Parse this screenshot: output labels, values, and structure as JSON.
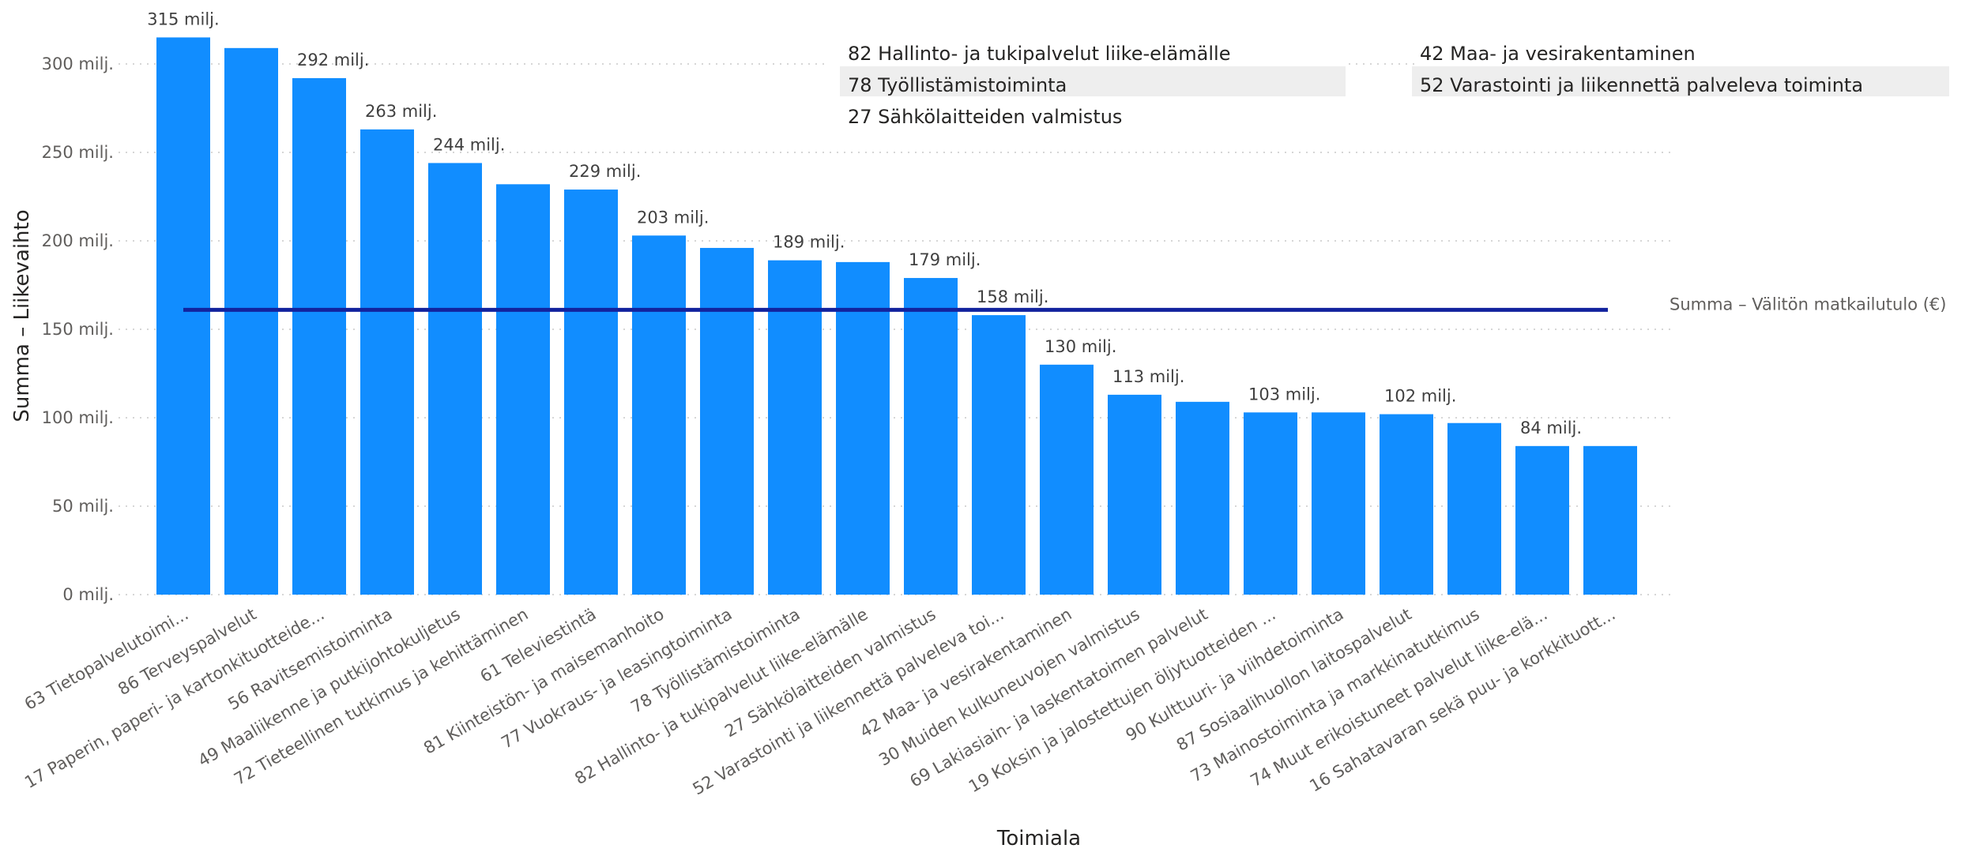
{
  "chart_data": {
    "type": "bar",
    "title": "",
    "xlabel": "Toimiala",
    "ylabel": "Summa – Liikevaihto",
    "ylim": [
      0,
      315
    ],
    "yticks": [
      0,
      50,
      100,
      150,
      200,
      250,
      300
    ],
    "ytick_labels": [
      "0 milj.",
      "50 milj.",
      "100 milj.",
      "150 milj.",
      "200 milj.",
      "250 milj.",
      "300 milj."
    ],
    "grid": true,
    "bar_color": "#118dff",
    "reference_color": "#12239e",
    "categories": [
      "63 Tietopalvelutoimi...",
      "86 Terveyspalvelut",
      "17 Paperin, paperi- ja kartonkituotteide...",
      "56 Ravitsemistoiminta",
      "49 Maaliikenne ja putkijohtokuljetus",
      "72 Tieteellinen tutkimus ja kehittäminen",
      "61 Televiestintä",
      "81 Kiinteistön- ja maisemanhoito",
      "77 Vuokraus- ja leasingtoiminta",
      "78 Työllistämistoiminta",
      "82 Hallinto- ja tukipalvelut liike-elämälle",
      "27 Sähkölaitteiden valmistus",
      "52 Varastointi ja liikennettä palveleva toi...",
      "42 Maa- ja vesirakentaminen",
      "30 Muiden kulkuneuvojen valmistus",
      "69 Lakiasiain- ja laskentatoimen palvelut",
      "19 Koksin ja jalostettujen öljytuotteiden ...",
      "90 Kulttuuri- ja viihdetoiminta",
      "87 Sosiaalihuollon laitospalvelut",
      "73 Mainostoiminta ja markkinatutkimus",
      "74 Muut erikoistuneet palvelut liike-elä...",
      "16 Sahatavaran sekä puu- ja korkkituott..."
    ],
    "series": [
      {
        "name": "Summa – Liikevaihto",
        "values": [
          315,
          309,
          292,
          263,
          244,
          232,
          229,
          203,
          196,
          189,
          188,
          179,
          158,
          130,
          113,
          109,
          103,
          103,
          102,
          97,
          84,
          84
        ]
      }
    ],
    "data_labels": [
      "315 milj.",
      "",
      "292 milj.",
      "263 milj.",
      "244 milj.",
      "",
      "229 milj.",
      "203 milj.",
      "",
      "189 milj.",
      "",
      "179 milj.",
      "158 milj.",
      "130 milj.",
      "113 milj.",
      "",
      "103 milj.",
      "",
      "102 milj.",
      "",
      "84 milj.",
      ""
    ],
    "reference_line": {
      "name": "Summa – Välitön matkailutulo (€)",
      "value": 161
    },
    "legend_overlay": {
      "column1": [
        "82 Hallinto- ja tukipalvelut liike-elämälle",
        "78 Työllistämistoiminta",
        "27 Sähkölaitteiden valmistus"
      ],
      "column2": [
        "42 Maa- ja vesirakentaminen",
        "52 Varastointi ja liikennettä palveleva toiminta"
      ],
      "highlighted_row": 1
    }
  }
}
